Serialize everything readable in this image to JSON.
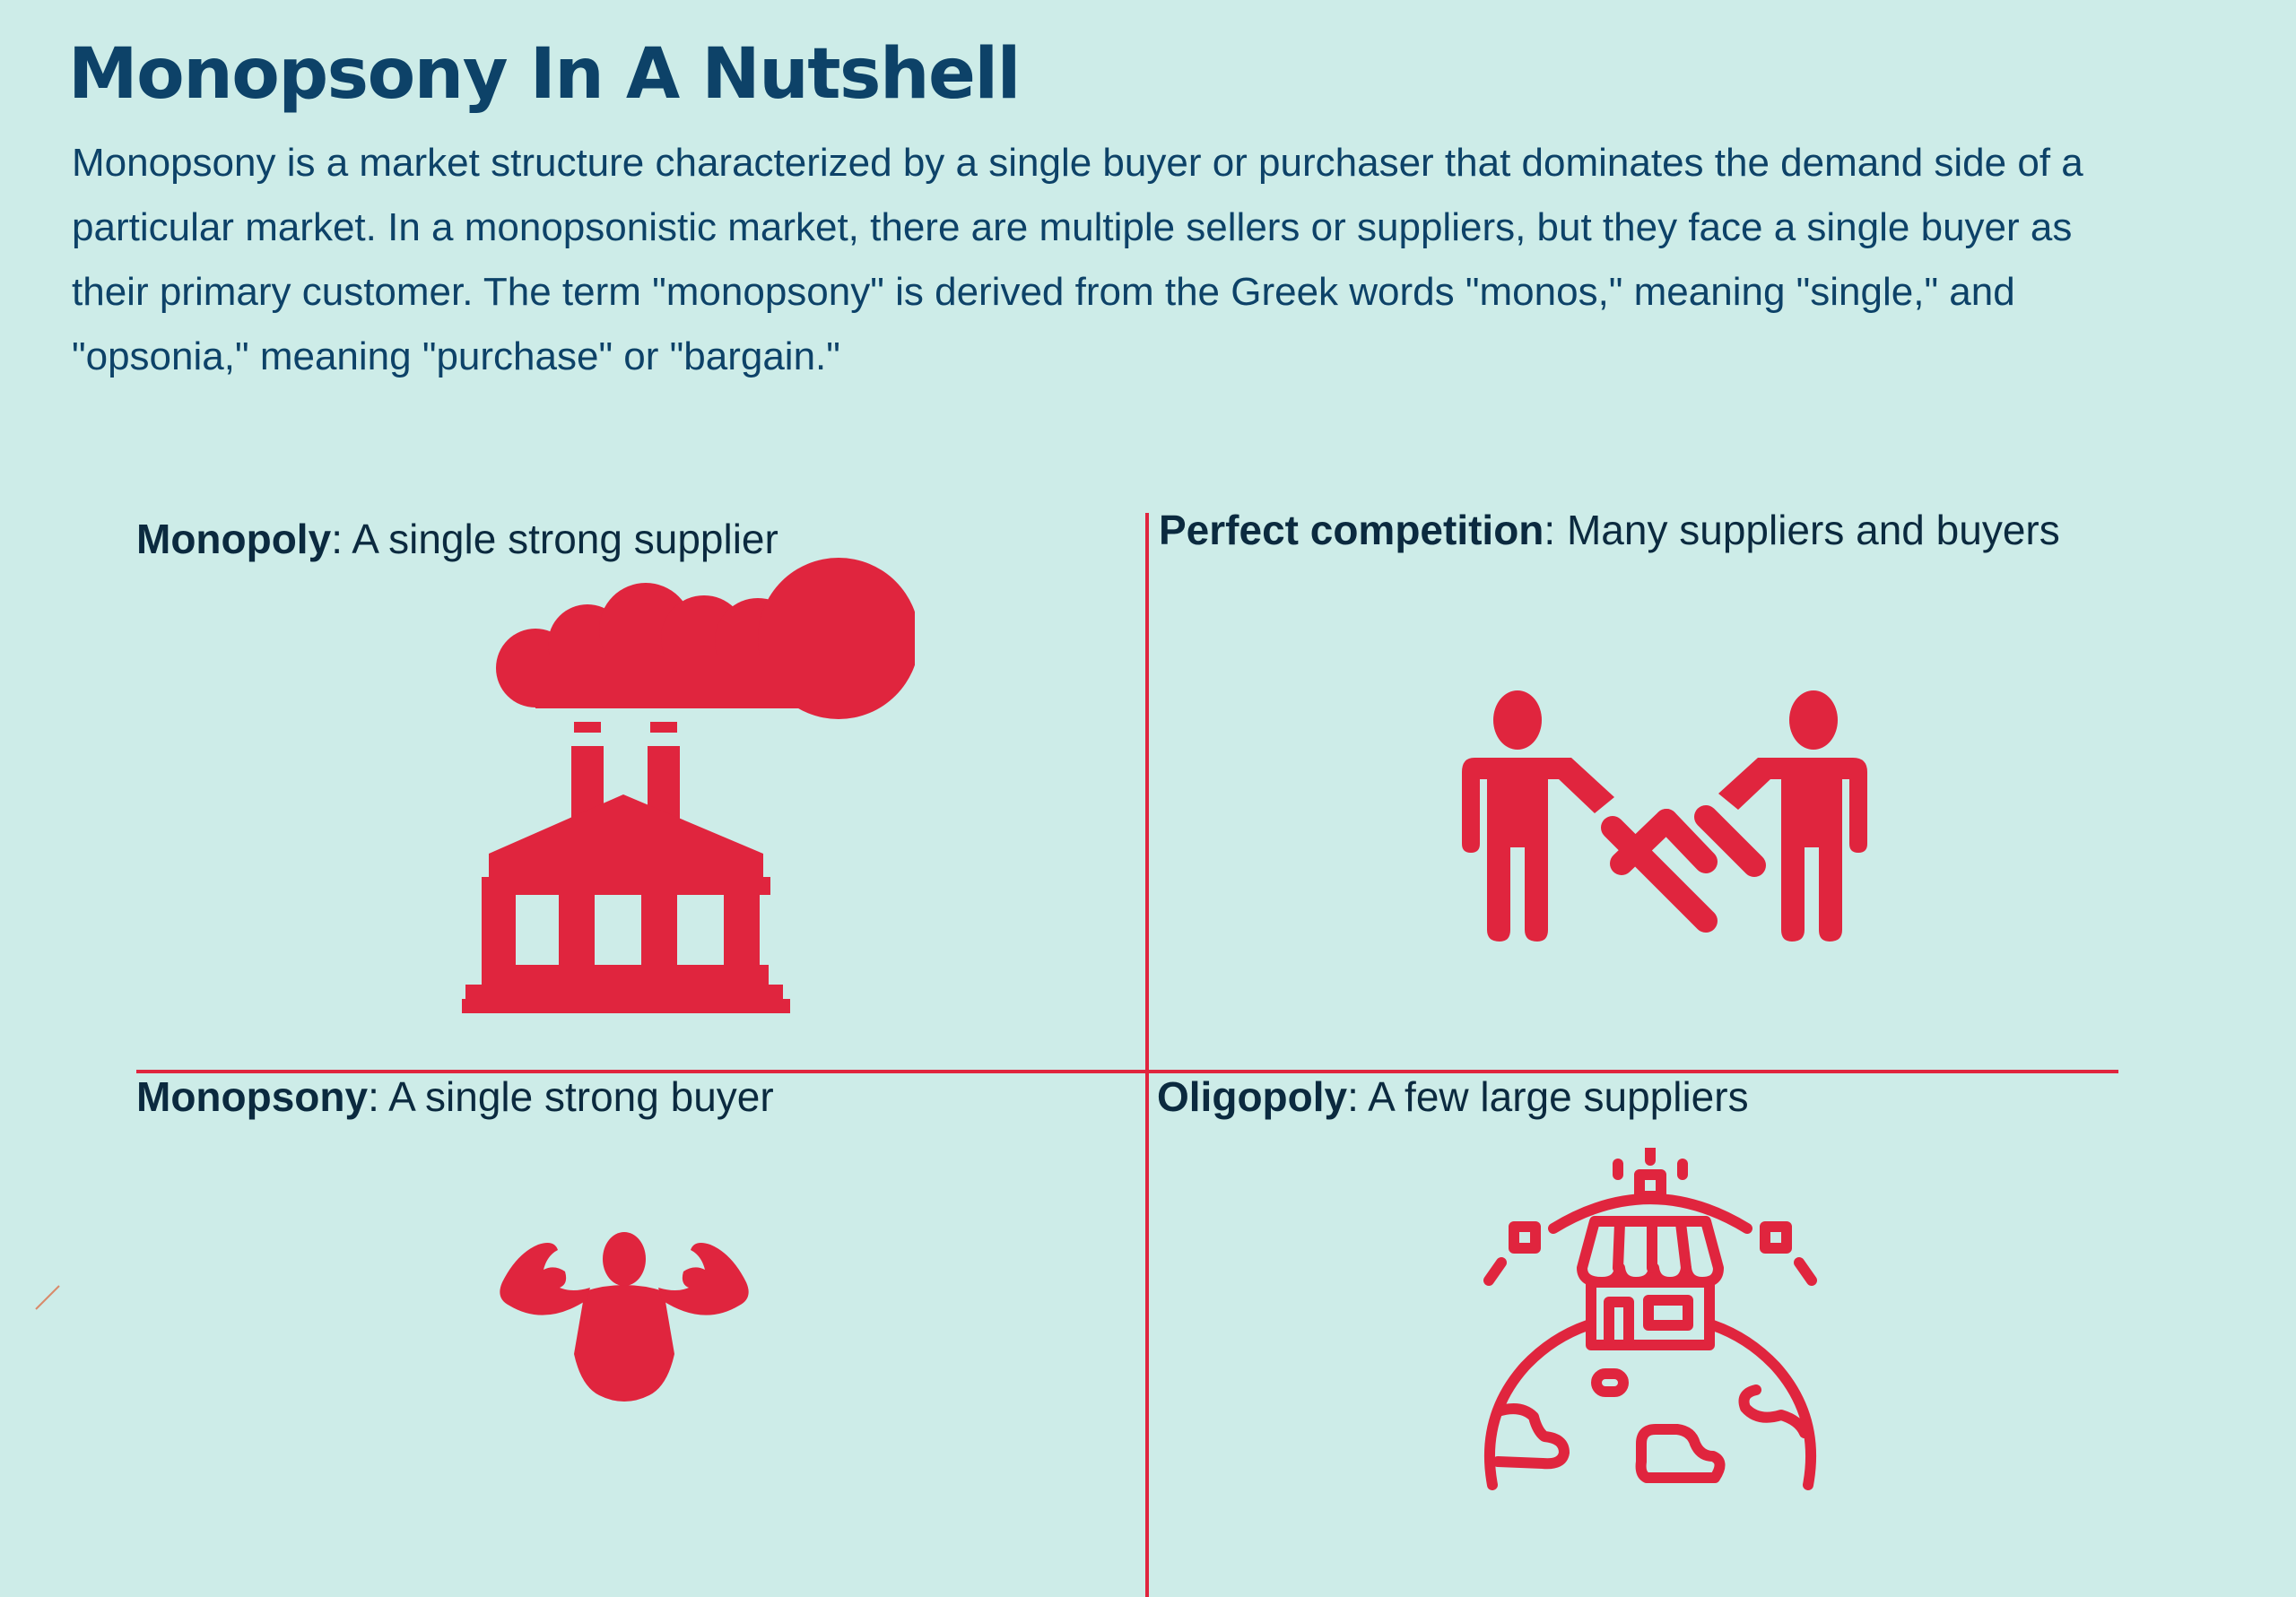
{
  "title": "Monopsony In A Nutshell",
  "intro": "Monopsony is a market structure characterized by a single buyer or purchaser that dominates the demand side of a particular market. In a monopsonistic market, there are multiple sellers or suppliers, but they face a single buyer as their primary customer. The term \"monopsony\" is derived from the Greek words \"monos,\" meaning \"single,\" and \"opsonia,\" meaning \"purchase\" or \"bargain.\"",
  "quadrants": {
    "monopoly": {
      "term": "Monopoly",
      "description": ": A single strong supplier",
      "icon": "factory-icon"
    },
    "perfect_competition": {
      "term": "Perfect competition",
      "description": ": Many suppliers and buyers",
      "icon": "handshake-people-icon"
    },
    "monopsony": {
      "term": "Monopsony",
      "description": ": A single strong buyer",
      "icon": "strong-man-icon"
    },
    "oligopoly": {
      "term": "Oligopoly",
      "description": ": A few large suppliers",
      "icon": "global-shop-icon"
    }
  },
  "colors": {
    "background": "#cdece8",
    "title": "#0d4268",
    "accent": "#e0253e",
    "label_text": "#0b2a3f"
  }
}
